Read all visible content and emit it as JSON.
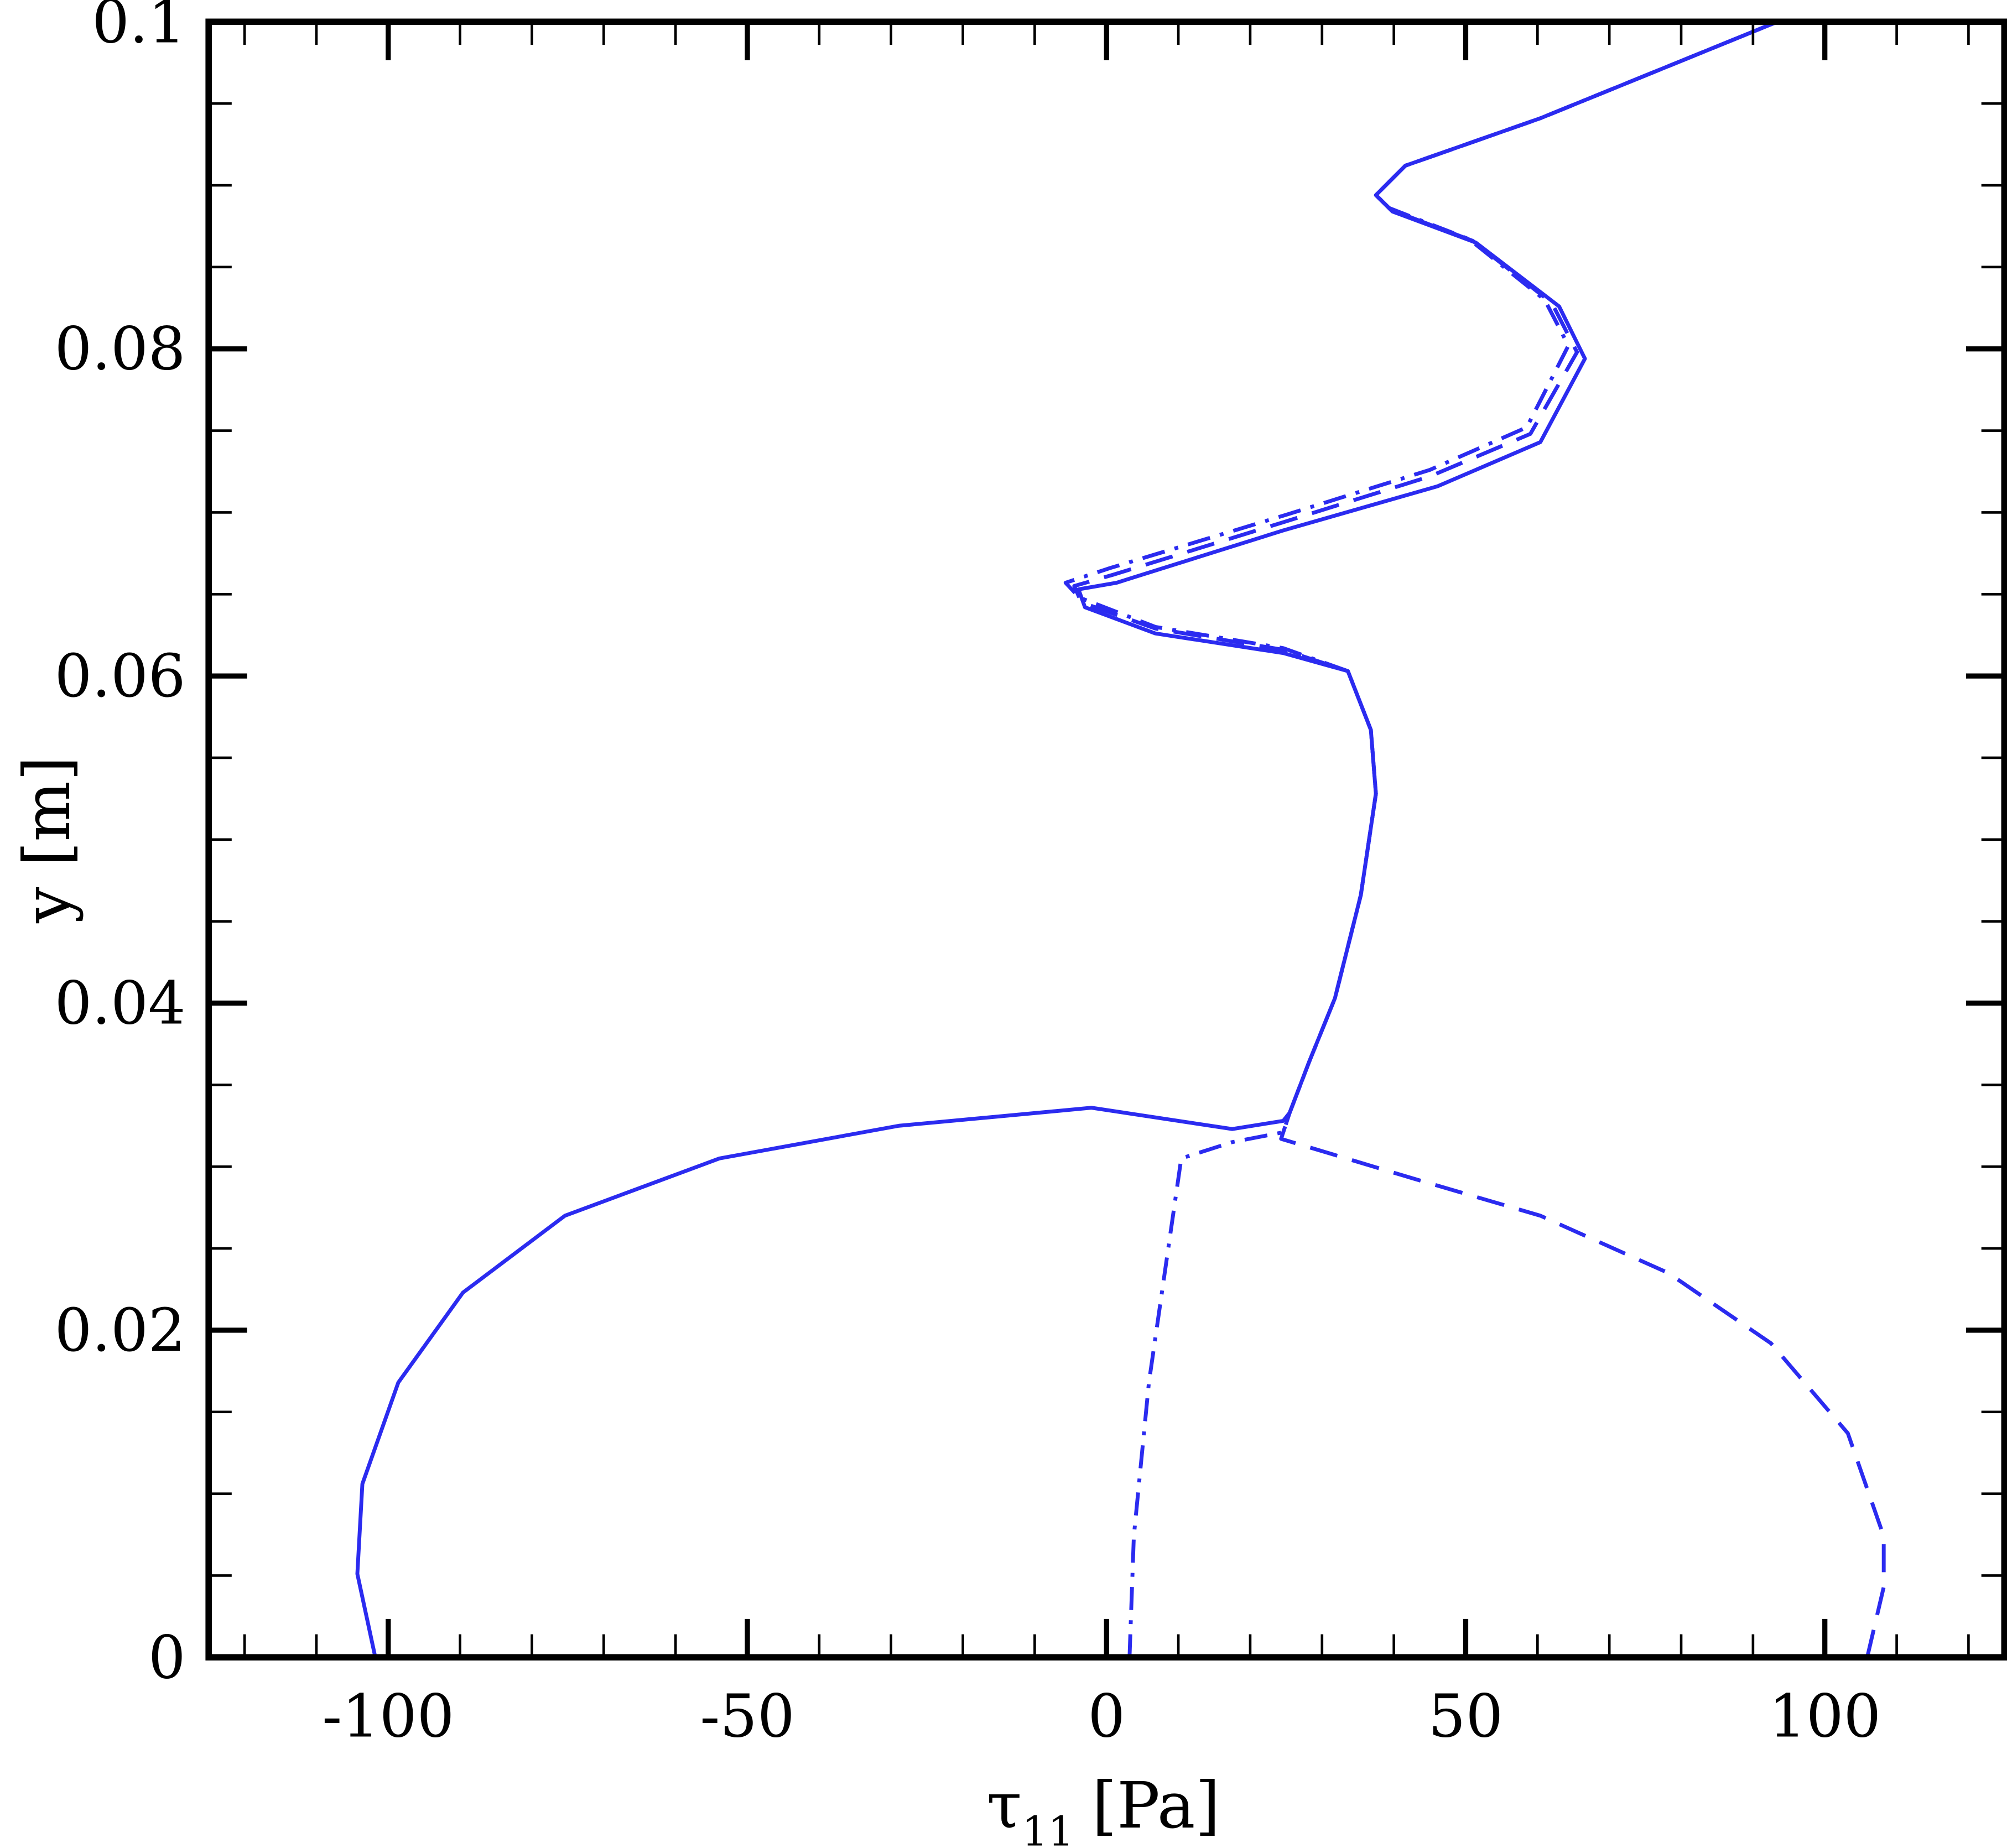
{
  "chart_data": {
    "type": "line",
    "xlabel": {
      "symbol": "τ",
      "subscript": "11",
      "unit": "[Pa]"
    },
    "ylabel": "y [m]",
    "xlim": [
      -125,
      125
    ],
    "ylim": [
      0,
      0.1
    ],
    "xticks": [
      -100,
      -50,
      0,
      50,
      100
    ],
    "yticks": [
      0,
      0.02,
      0.04,
      0.06,
      0.08,
      0.1
    ],
    "xminorticks": [
      -120,
      -110,
      -90,
      -80,
      -70,
      -60,
      -40,
      -30,
      -20,
      -10,
      10,
      20,
      30,
      40,
      60,
      70,
      80,
      90,
      110,
      120
    ],
    "yminorticks": [
      0.005,
      0.01,
      0.015,
      0.025,
      0.03,
      0.035,
      0.045,
      0.05,
      0.055,
      0.065,
      0.07,
      0.075,
      0.085,
      0.09,
      0.095
    ],
    "series": [
      {
        "color": "#2b2bf0",
        "style": "solid",
        "x": [
          -101.8,
          -104.3,
          -103.6,
          -98.6,
          -89.6,
          -75.4,
          -53.9,
          -28.9,
          -2.1,
          17.5,
          24.6,
          25.5,
          28.2,
          31.8,
          35.4,
          37.5,
          36.8,
          33.6,
          24.6,
          6.8,
          -3.0,
          -3.9,
          1.4,
          24.6,
          46.1,
          60.4,
          66.6,
          63.0,
          51.4,
          39.8,
          37.5,
          41.6,
          60.4,
          93.4
        ],
        "y": [
          0,
          0.0051,
          0.0106,
          0.0168,
          0.0223,
          0.027,
          0.0305,
          0.0325,
          0.0336,
          0.0323,
          0.0328,
          0.0333,
          0.0364,
          0.0403,
          0.0466,
          0.0528,
          0.0567,
          0.0603,
          0.0614,
          0.0626,
          0.0642,
          0.0653,
          0.0657,
          0.0689,
          0.0716,
          0.0743,
          0.0794,
          0.0826,
          0.0865,
          0.0884,
          0.0894,
          0.0912,
          0.0941,
          0.1
        ]
      },
      {
        "color": "#2b2bf0",
        "style": "dashed",
        "x": [
          105.9,
          108.2,
          108.2,
          103.2,
          92.5,
          78.2,
          60.4,
          42.5,
          24.3,
          25.5,
          28.2,
          31.8,
          35.4,
          37.5,
          36.8,
          33.6,
          24.6,
          6.8,
          -3.5,
          -4.5,
          1.0,
          24.6,
          45.0,
          59.0,
          65.5,
          62.0,
          51.0,
          39.6,
          37.5,
          41.6,
          60.4,
          93.4
        ],
        "y": [
          0,
          0.0043,
          0.0074,
          0.0137,
          0.0192,
          0.0235,
          0.027,
          0.0293,
          0.0317,
          0.0333,
          0.0364,
          0.0403,
          0.0466,
          0.0528,
          0.0567,
          0.0603,
          0.0616,
          0.0629,
          0.0645,
          0.0655,
          0.0662,
          0.0694,
          0.0722,
          0.0748,
          0.0798,
          0.0828,
          0.0866,
          0.0885,
          0.0894,
          0.0912,
          0.0941,
          0.1
        ]
      },
      {
        "color": "#2b2bf0",
        "style": "dashdot",
        "x": [
          3.2,
          3.8,
          5.9,
          10.4,
          17.5,
          24.6,
          25.5,
          28.2,
          31.8,
          35.4,
          37.5,
          36.8,
          33.6,
          24.6,
          6.8,
          -3.8,
          -5.7,
          0.5,
          24.6,
          45.0,
          58.5,
          64.3,
          61.0,
          50.5,
          39.4,
          37.5,
          41.6,
          60.4,
          93.4
        ],
        "y": [
          0,
          0.0074,
          0.0168,
          0.0305,
          0.0315,
          0.0321,
          0.0333,
          0.0364,
          0.0403,
          0.0466,
          0.0528,
          0.0567,
          0.0603,
          0.0617,
          0.063,
          0.0648,
          0.0657,
          0.0666,
          0.0698,
          0.0726,
          0.0752,
          0.0802,
          0.083,
          0.0867,
          0.0886,
          0.0894,
          0.0912,
          0.0941,
          0.1
        ]
      }
    ]
  }
}
